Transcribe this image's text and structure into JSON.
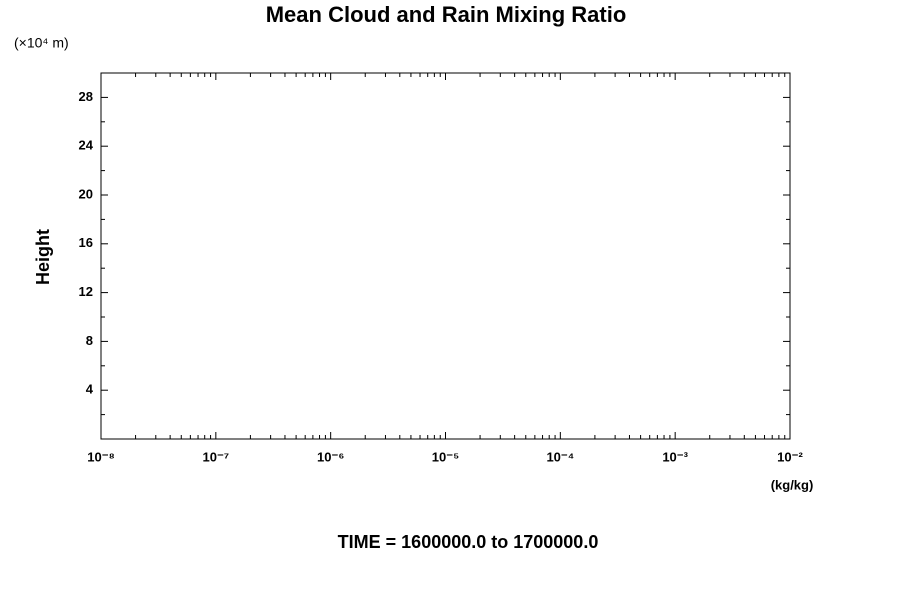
{
  "chart_data": {
    "type": "line",
    "title": "Mean Cloud and Rain Mixing Ratio",
    "y_unit_label": "(×10⁴ m)",
    "y_label": "Height",
    "x_unit_label": "(kg/kg)",
    "footer": "TIME = 1600000.0 to 1700000.0",
    "series": [],
    "xscale": "log",
    "xlim": [
      1e-08,
      0.01
    ],
    "xticks": [
      {
        "value": 1e-08,
        "label": "10⁻⁸"
      },
      {
        "value": 1e-07,
        "label": "10⁻⁷"
      },
      {
        "value": 1e-06,
        "label": "10⁻⁶"
      },
      {
        "value": 1e-05,
        "label": "10⁻⁵"
      },
      {
        "value": 0.0001,
        "label": "10⁻⁴"
      },
      {
        "value": 0.001,
        "label": "10⁻³"
      },
      {
        "value": 0.01,
        "label": "10⁻²"
      }
    ],
    "ylim": [
      0,
      30
    ],
    "yticks": [
      4,
      8,
      12,
      16,
      20,
      24,
      28
    ],
    "grid": false
  }
}
